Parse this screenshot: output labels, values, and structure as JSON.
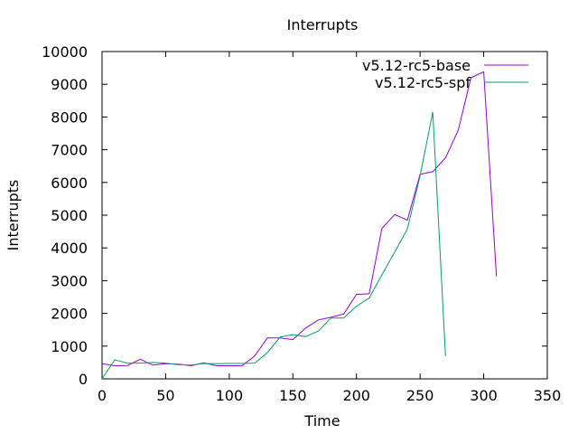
{
  "chart_data": {
    "type": "line",
    "title": "Interrupts",
    "xlabel": "Time",
    "ylabel": "Interrupts",
    "xlim": [
      0,
      350
    ],
    "ylim": [
      0,
      10000
    ],
    "x_ticks": [
      0,
      50,
      100,
      150,
      200,
      250,
      300,
      350
    ],
    "y_ticks": [
      0,
      1000,
      2000,
      3000,
      4000,
      5000,
      6000,
      7000,
      8000,
      9000,
      10000
    ],
    "x_tick_labels": [
      "0",
      "50",
      "100",
      "150",
      "200",
      "250",
      "300",
      "350"
    ],
    "y_tick_labels": [
      "0",
      "1000",
      "2000",
      "3000",
      "4000",
      "5000",
      "6000",
      "7000",
      "8000",
      "9000",
      "10000"
    ],
    "grid": false,
    "legend_position": "top-right",
    "series": [
      {
        "name": "v5.12-rc5-base",
        "color": "#9400d3",
        "x": [
          0,
          10,
          20,
          30,
          40,
          50,
          60,
          70,
          80,
          90,
          100,
          110,
          120,
          130,
          140,
          150,
          160,
          170,
          180,
          190,
          200,
          210,
          220,
          230,
          240,
          250,
          260,
          270,
          280,
          290,
          300,
          310
        ],
        "y": [
          460,
          400,
          410,
          600,
          420,
          460,
          450,
          400,
          490,
          400,
          400,
          400,
          700,
          1250,
          1250,
          1200,
          1550,
          1800,
          1880,
          1980,
          2580,
          2600,
          4600,
          5020,
          4850,
          6250,
          6330,
          6750,
          7600,
          9200,
          9380,
          3130
        ]
      },
      {
        "name": "v5.12-rc5-spf",
        "color": "#009e73",
        "x": [
          0,
          10,
          20,
          30,
          40,
          50,
          60,
          70,
          80,
          90,
          100,
          110,
          120,
          130,
          140,
          150,
          160,
          170,
          180,
          190,
          200,
          210,
          220,
          230,
          240,
          250,
          260,
          270
        ],
        "y": [
          0,
          580,
          480,
          480,
          500,
          480,
          430,
          420,
          470,
          460,
          470,
          470,
          480,
          800,
          1280,
          1350,
          1290,
          1460,
          1860,
          1860,
          2220,
          2470,
          3180,
          3870,
          4580,
          6200,
          8150,
          700
        ]
      }
    ]
  }
}
